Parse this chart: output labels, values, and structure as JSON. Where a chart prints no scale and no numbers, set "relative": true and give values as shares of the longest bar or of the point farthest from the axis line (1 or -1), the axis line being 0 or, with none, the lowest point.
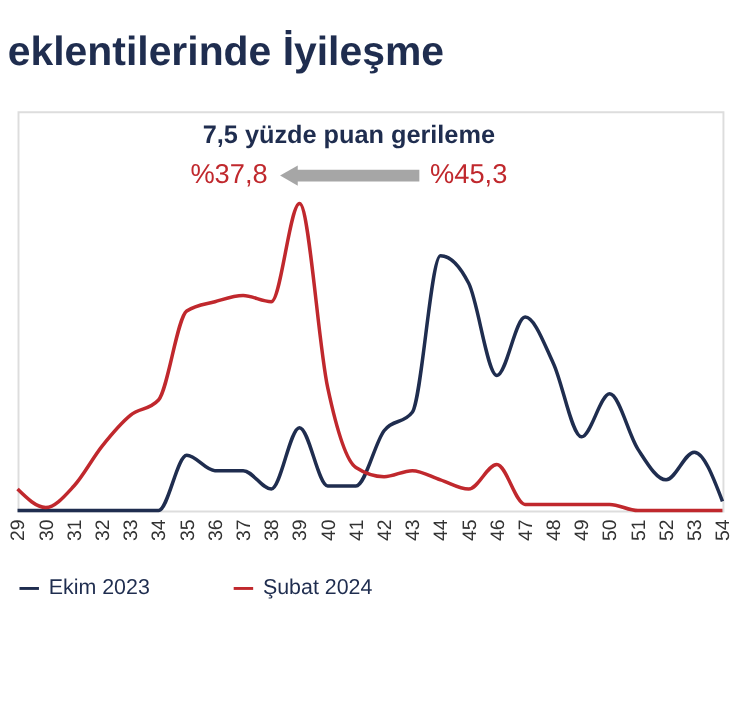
{
  "chart_data": {
    "type": "line",
    "title": "eklentilerinde İyileşme",
    "relative": true,
    "legend": "bottom",
    "grid": false,
    "marker": "none",
    "line_style": "solid",
    "categories": [
      "29",
      "30",
      "31",
      "32",
      "33",
      "34",
      "35",
      "36",
      "37",
      "38",
      "39",
      "40",
      "41",
      "42",
      "43",
      "44",
      "45",
      "46",
      "47",
      "48",
      "49",
      "50",
      "51",
      "52",
      "53",
      "54"
    ],
    "series": [
      {
        "name": "Ekim 2023",
        "color": "#1f2d4f",
        "values": [
          0,
          0,
          0,
          0,
          0,
          0,
          0.18,
          0.13,
          0.13,
          0.07,
          0.27,
          0.08,
          0.08,
          0.26,
          0.32,
          0.83,
          0.74,
          0.44,
          0.63,
          0.48,
          0.24,
          0.38,
          0.2,
          0.1,
          0.19,
          0.03
        ]
      },
      {
        "name": "Şubat 2024",
        "color": "#c0282d",
        "values": [
          0.07,
          0.01,
          0.08,
          0.21,
          0.31,
          0.36,
          0.65,
          0.68,
          0.7,
          0.68,
          1,
          0.4,
          0.14,
          0.11,
          0.13,
          0.1,
          0.07,
          0.15,
          0.02,
          0.02,
          0.02,
          0.02,
          0,
          0,
          0,
          0
        ]
      }
    ],
    "annotations": [
      "7,5 yüzde puan gerileme",
      "%37,8",
      "%45,3"
    ]
  }
}
